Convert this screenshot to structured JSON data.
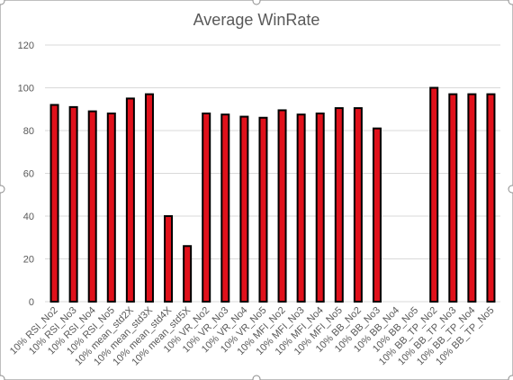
{
  "chart_data": {
    "type": "bar",
    "title": "Average WinRate",
    "xlabel": "",
    "ylabel": "",
    "ylim": [
      0,
      120
    ],
    "yticks": [
      0,
      20,
      40,
      60,
      80,
      100,
      120
    ],
    "grid": true,
    "legend": "none",
    "colors": {
      "bar_fill": "#e0111b",
      "bar_stroke": "#000000",
      "grid": "#d9d9d9",
      "text": "#595959",
      "frame": "#bfbfbf"
    },
    "categories": [
      "10% RSI_No2",
      "10% RSI_No3",
      "10% RSI_No4",
      "10% RSI_No5",
      "10% mean_std2X",
      "10% mean_std3X",
      "10% mean_std4X",
      "10% mean_std5X",
      "10% VR_No2",
      "10% VR_No3",
      "10% VR_No4",
      "10% VR_No5",
      "10% MFI_No2",
      "10% MFI_No3",
      "10% MFI_No4",
      "10% MFI_No5",
      "10% BB_No2",
      "10% BB_No3",
      "10% BB_No4",
      "10% BB_No5",
      "10% BB_TP_No2",
      "10% BB_TP_No3",
      "10% BB_TP_No4",
      "10% BB_TP_No5"
    ],
    "values": [
      92,
      91,
      89,
      88,
      95,
      97,
      40,
      26,
      88,
      87.5,
      86.5,
      86,
      89.5,
      87.5,
      88,
      90.5,
      90.5,
      81,
      0,
      0,
      100,
      97,
      97,
      97
    ]
  }
}
